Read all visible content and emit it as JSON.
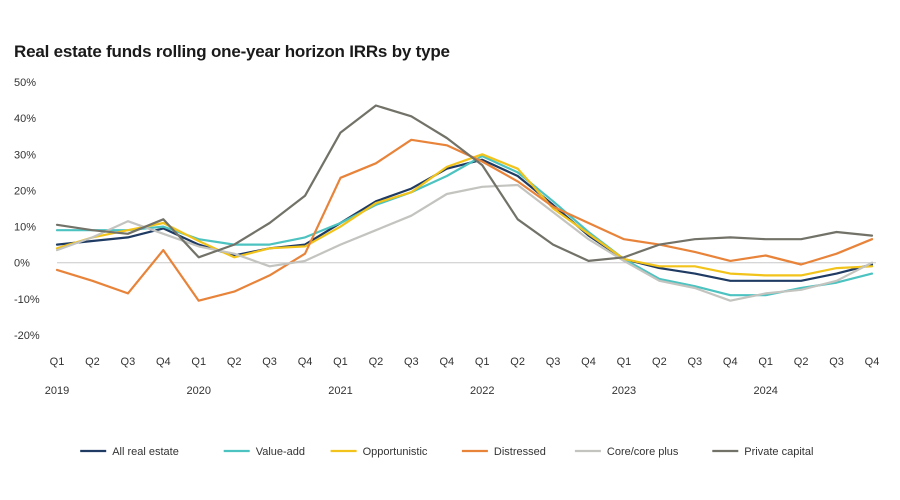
{
  "chart_data": {
    "type": "line",
    "title": "Real estate funds rolling one-year horizon IRRs by type",
    "y_ticks": [
      "50%",
      "40%",
      "30%",
      "20%",
      "10%",
      "0%",
      "-10%",
      "-20%"
    ],
    "y_tick_values": [
      50,
      40,
      30,
      20,
      10,
      0,
      -10,
      -20
    ],
    "negative_tick_color": "#e8833a",
    "ylim": [
      -20,
      50
    ],
    "quarters": [
      "Q1",
      "Q2",
      "Q3",
      "Q4",
      "Q1",
      "Q2",
      "Q3",
      "Q4",
      "Q1",
      "Q2",
      "Q3",
      "Q4",
      "Q1",
      "Q2",
      "Q3",
      "Q4",
      "Q1",
      "Q2",
      "Q3",
      "Q4",
      "Q1",
      "Q2",
      "Q3",
      "Q4"
    ],
    "years": [
      {
        "label": "2019",
        "index": 0
      },
      {
        "label": "2020",
        "index": 4
      },
      {
        "label": "2021",
        "index": 8
      },
      {
        "label": "2022",
        "index": 12
      },
      {
        "label": "2023",
        "index": 16
      },
      {
        "label": "2024",
        "index": 20
      }
    ],
    "zero_line_color": "#c8c8c8",
    "legend_position": "bottom",
    "series": [
      {
        "name": "All real estate",
        "color": "#1f3b63",
        "values": [
          5,
          6,
          7,
          9.5,
          5,
          2,
          4,
          5,
          11,
          17,
          20.5,
          26,
          28.5,
          24,
          16,
          7.5,
          1,
          -1.5,
          -3,
          -5,
          -5,
          -5,
          -3,
          -0.5
        ]
      },
      {
        "name": "Value-add",
        "color": "#4cc3c0",
        "values": [
          9,
          9,
          9,
          10,
          6.5,
          5,
          5,
          7,
          11,
          16,
          19.5,
          24,
          29.5,
          25,
          17,
          8.5,
          1,
          -4.5,
          -6.5,
          -9,
          -9,
          -7,
          -5.5,
          -3
        ]
      },
      {
        "name": "Opportunistic",
        "color": "#f2c31a",
        "values": [
          4,
          7,
          9,
          11,
          6,
          1.5,
          4,
          4.5,
          10,
          16.5,
          19.5,
          26.5,
          30,
          26,
          15,
          8,
          1,
          -1,
          -1,
          -3,
          -3.5,
          -3.5,
          -1.5,
          -1
        ]
      },
      {
        "name": "Distressed",
        "color": "#e8833a",
        "values": [
          -2,
          -5,
          -8.5,
          3.5,
          -10.5,
          -8,
          -3.5,
          2.5,
          23.5,
          27.5,
          34,
          32.5,
          28,
          22.5,
          15.5,
          11,
          6.5,
          5,
          3,
          0.5,
          2,
          -0.5,
          2.5,
          6.5
        ]
      },
      {
        "name": "Core/core plus",
        "color": "#c3c3bf",
        "values": [
          3.5,
          7,
          11.5,
          8,
          4.5,
          2.5,
          -1,
          0.5,
          5,
          9,
          13,
          19,
          21,
          21.5,
          14,
          6.5,
          0.5,
          -5,
          -7,
          -10.5,
          -8.5,
          -7.5,
          -5,
          0
        ]
      },
      {
        "name": "Private capital",
        "color": "#727268",
        "values": [
          10.5,
          9,
          8,
          12,
          1.5,
          5,
          11,
          18.5,
          36,
          43.5,
          40.5,
          34.5,
          27,
          12,
          5,
          0.5,
          1.5,
          5,
          6.5,
          7,
          6.5,
          6.5,
          8.5,
          7.5
        ]
      }
    ]
  }
}
